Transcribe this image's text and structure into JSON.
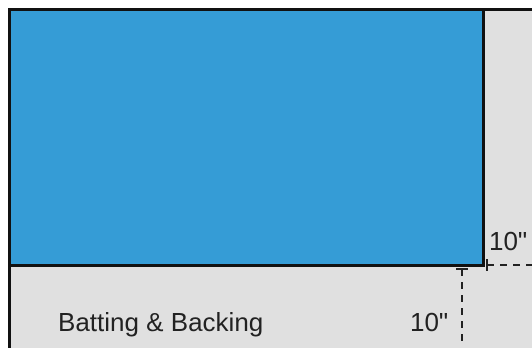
{
  "diagram": {
    "backing_label": "Batting & Backing",
    "dimensions": {
      "right_margin": "10\"",
      "bottom_margin": "10\""
    }
  },
  "colors": {
    "quilt_top": "#359cd6",
    "backing": "#e0e0e0",
    "outline": "#111111",
    "text": "#222222"
  }
}
